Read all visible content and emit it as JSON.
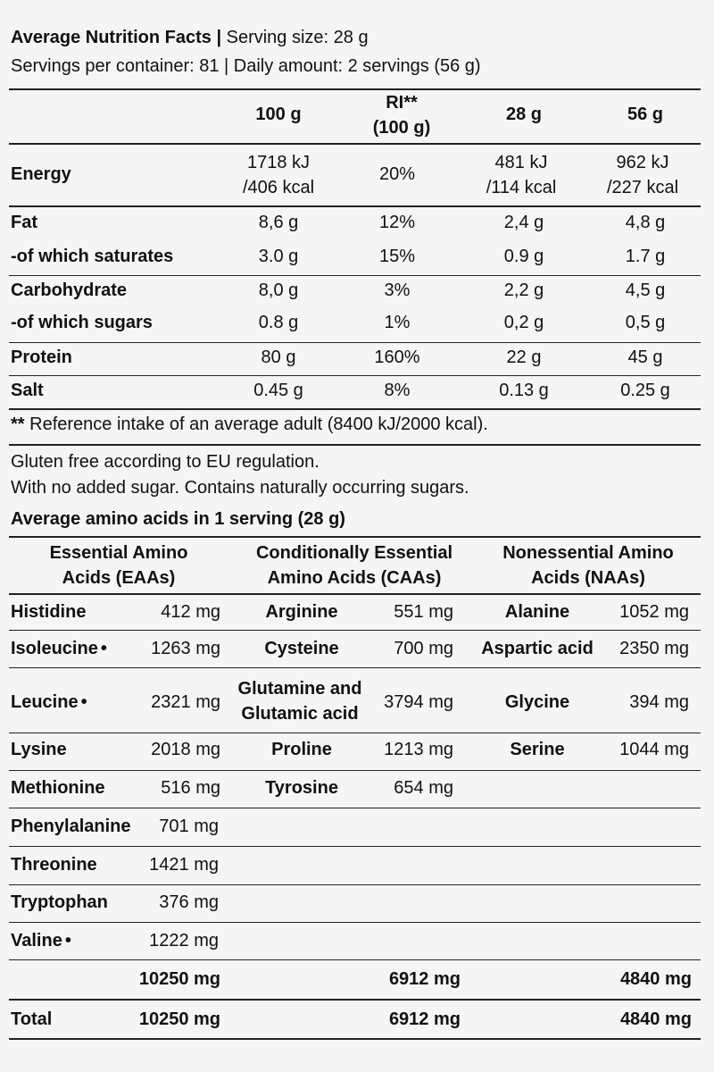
{
  "header": {
    "title": "Average Nutrition Facts",
    "sep": "|",
    "serving_size": "Serving size: 28 g",
    "servings_line": "Servings per container: 81 | Daily amount: 2 servings (56 g)"
  },
  "nutrition": {
    "columns": {
      "per100": "100 g",
      "ri_1": "RI**",
      "ri_2": "(100 g)",
      "per28": "28 g",
      "per56": "56 g"
    },
    "energy": {
      "label": "Energy",
      "per100_kj": "1718 kJ",
      "per100_kcal": "/406 kcal",
      "ri": "20%",
      "per28_kj": "481 kJ",
      "per28_kcal": "/114 kcal",
      "per56_kj": "962 kJ",
      "per56_kcal": "/227 kcal"
    },
    "rows": [
      {
        "label": "Fat",
        "per100": "8,6 g",
        "ri": "12%",
        "per28": "2,4 g",
        "per56": "4,8 g"
      },
      {
        "label": "-of which saturates",
        "per100": "3.0 g",
        "ri": "15%",
        "per28": "0.9 g",
        "per56": "1.7 g"
      },
      {
        "label": "Carbohydrate",
        "per100": "8,0 g",
        "ri": "3%",
        "per28": "2,2 g",
        "per56": "4,5 g"
      },
      {
        "label": "-of which sugars",
        "per100": "0.8 g",
        "ri": "1%",
        "per28": "0,2 g",
        "per56": "0,5 g"
      },
      {
        "label": "Protein",
        "per100": "80 g",
        "ri": "160%",
        "per28": "22 g",
        "per56": "45 g"
      },
      {
        "label": "Salt",
        "per100": "0.45 g",
        "ri": "8%",
        "per28": "0.13 g",
        "per56": "0.25 g"
      }
    ],
    "footnote_mark": "**",
    "footnote": "Reference intake of an average adult (8400 kJ/2000 kcal)."
  },
  "notes": {
    "gluten": "Gluten free according to EU regulation.",
    "sugar": "With no added sugar. Contains naturally occurring sugars."
  },
  "amino": {
    "title": "Average amino acids in 1 serving (28 g)",
    "headers": {
      "eaa_1": "Essential Amino",
      "eaa_2": "Acids (EAAs)",
      "caa_1": "Conditionally Essential",
      "caa_2": "Amino Acids (CAAs)",
      "naa_1": "Nonessential Amino",
      "naa_2": "Acids (NAAs)"
    },
    "eaa": [
      {
        "name": "Histidine",
        "value": "412 mg"
      },
      {
        "name": "Isoleucine",
        "value": "1263 mg"
      },
      {
        "name": "Leucine",
        "value": "2321 mg"
      },
      {
        "name": "Lysine",
        "value": "2018 mg"
      },
      {
        "name": "Methionine",
        "value": "516 mg"
      },
      {
        "name": "Phenylalanine",
        "value": "701 mg"
      },
      {
        "name": "Threonine",
        "value": "1421 mg"
      },
      {
        "name": "Tryptophan",
        "value": "376 mg"
      },
      {
        "name": "Valine",
        "value": "1222 mg"
      }
    ],
    "caa": [
      {
        "name": "Arginine",
        "value": "551 mg"
      },
      {
        "name": "Cysteine",
        "value": "700 mg"
      },
      {
        "name_1": "Glutamine and",
        "name_2": "Glutamic acid",
        "value": "3794 mg"
      },
      {
        "name": "Proline",
        "value": "1213 mg"
      },
      {
        "name": "Tyrosine",
        "value": "654 mg"
      }
    ],
    "naa": [
      {
        "name": "Alanine",
        "value": "1052 mg"
      },
      {
        "name": "Aspartic acid",
        "value": "2350 mg"
      },
      {
        "name": "Glycine",
        "value": "394 mg"
      },
      {
        "name": "Serine",
        "value": "1044 mg"
      }
    ],
    "subtotals": {
      "eaa": "10250 mg",
      "caa": "6912 mg",
      "naa": "4840 mg"
    },
    "total": {
      "label": "Total",
      "eaa": "10250 mg",
      "caa": "6912 mg",
      "naa": "4840 mg"
    }
  }
}
